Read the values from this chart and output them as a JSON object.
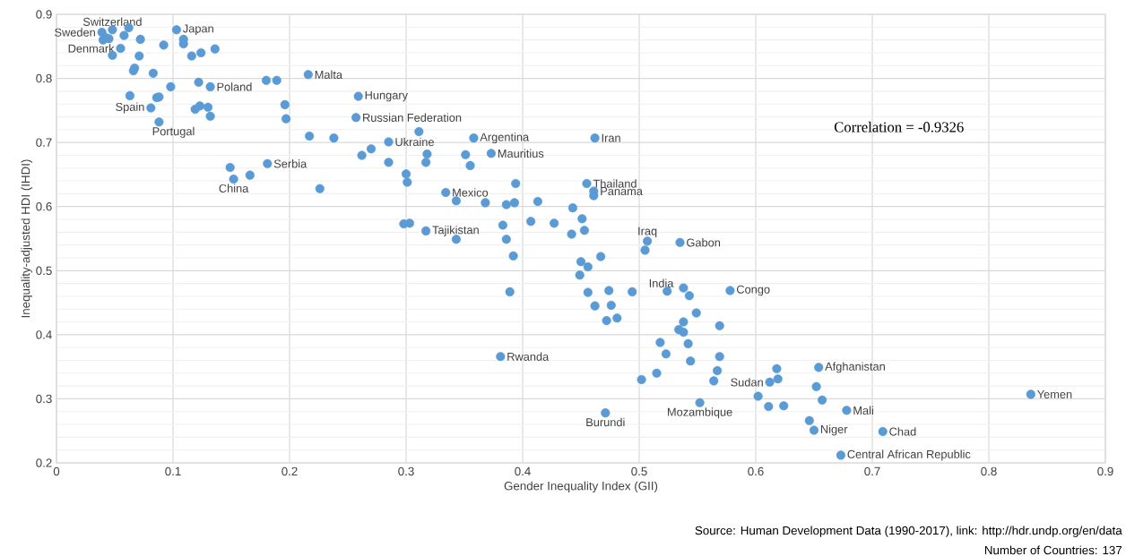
{
  "chart_data": {
    "type": "scatter",
    "xlabel": "Gender Inequality Index (GII)",
    "ylabel": "Inequality-adjusted HDI (IHDI)",
    "color": "#5b9bd5",
    "marker": "circle",
    "grid": true,
    "xlim": [
      0,
      0.9
    ],
    "ylim": [
      0.2,
      0.9
    ],
    "xticks": [
      0,
      0.1,
      0.2,
      0.3,
      0.4,
      0.5,
      0.6,
      0.7,
      0.8,
      0.9
    ],
    "yticks": [
      0.2,
      0.3,
      0.4,
      0.5,
      0.6,
      0.7,
      0.8,
      0.9
    ],
    "x": [
      0.039,
      0.048,
      0.062,
      0.058,
      0.042,
      0.045,
      0.04,
      0.072,
      0.103,
      0.109,
      0.109,
      0.092,
      0.055,
      0.048,
      0.071,
      0.116,
      0.124,
      0.136,
      0.067,
      0.066,
      0.083,
      0.216,
      0.18,
      0.189,
      0.122,
      0.132,
      0.098,
      0.063,
      0.086,
      0.088,
      0.259,
      0.081,
      0.119,
      0.123,
      0.13,
      0.132,
      0.196,
      0.197,
      0.257,
      0.088,
      0.217,
      0.238,
      0.285,
      0.27,
      0.262,
      0.285,
      0.149,
      0.152,
      0.166,
      0.181,
      0.226,
      0.3,
      0.301,
      0.298,
      0.303,
      0.311,
      0.358,
      0.462,
      0.318,
      0.317,
      0.351,
      0.355,
      0.373,
      0.394,
      0.455,
      0.461,
      0.461,
      0.334,
      0.343,
      0.368,
      0.386,
      0.393,
      0.413,
      0.443,
      0.407,
      0.427,
      0.451,
      0.383,
      0.442,
      0.453,
      0.317,
      0.343,
      0.386,
      0.507,
      0.535,
      0.505,
      0.392,
      0.467,
      0.45,
      0.456,
      0.449,
      0.389,
      0.456,
      0.474,
      0.494,
      0.524,
      0.538,
      0.543,
      0.578,
      0.462,
      0.476,
      0.549,
      0.472,
      0.481,
      0.538,
      0.569,
      0.534,
      0.538,
      0.518,
      0.542,
      0.381,
      0.523,
      0.569,
      0.544,
      0.567,
      0.515,
      0.502,
      0.564,
      0.552,
      0.471,
      0.618,
      0.654,
      0.612,
      0.619,
      0.652,
      0.602,
      0.657,
      0.611,
      0.624,
      0.836,
      0.678,
      0.646,
      0.65,
      0.709,
      0.673
    ],
    "values": [
      0.872,
      0.876,
      0.879,
      0.867,
      0.864,
      0.862,
      0.86,
      0.861,
      0.876,
      0.861,
      0.854,
      0.852,
      0.847,
      0.836,
      0.835,
      0.835,
      0.84,
      0.846,
      0.816,
      0.812,
      0.808,
      0.806,
      0.797,
      0.797,
      0.794,
      0.787,
      0.787,
      0.773,
      0.77,
      0.771,
      0.772,
      0.754,
      0.752,
      0.757,
      0.755,
      0.741,
      0.759,
      0.737,
      0.739,
      0.732,
      0.71,
      0.707,
      0.701,
      0.69,
      0.68,
      0.669,
      0.661,
      0.643,
      0.649,
      0.667,
      0.628,
      0.651,
      0.638,
      0.573,
      0.574,
      0.717,
      0.707,
      0.707,
      0.682,
      0.669,
      0.681,
      0.664,
      0.683,
      0.636,
      0.636,
      0.624,
      0.617,
      0.622,
      0.609,
      0.606,
      0.603,
      0.606,
      0.608,
      0.598,
      0.577,
      0.574,
      0.581,
      0.571,
      0.557,
      0.563,
      0.562,
      0.549,
      0.549,
      0.546,
      0.544,
      0.532,
      0.523,
      0.522,
      0.514,
      0.506,
      0.493,
      0.467,
      0.466,
      0.469,
      0.467,
      0.468,
      0.473,
      0.461,
      0.469,
      0.445,
      0.446,
      0.434,
      0.422,
      0.426,
      0.42,
      0.414,
      0.408,
      0.404,
      0.388,
      0.386,
      0.366,
      0.37,
      0.366,
      0.359,
      0.344,
      0.34,
      0.33,
      0.328,
      0.294,
      0.278,
      0.347,
      0.349,
      0.326,
      0.331,
      0.319,
      0.304,
      0.298,
      0.288,
      0.289,
      0.307,
      0.282,
      0.266,
      0.251,
      0.249,
      0.212
    ],
    "annotations": [
      {
        "text": "Switzerland",
        "x": 0.048,
        "y": 0.876
      },
      {
        "text": "Sweden",
        "x": 0.039,
        "y": 0.872
      },
      {
        "text": "Denmark",
        "x": 0.055,
        "y": 0.847
      },
      {
        "text": "Japan",
        "x": 0.103,
        "y": 0.876
      },
      {
        "text": "Malta",
        "x": 0.216,
        "y": 0.806
      },
      {
        "text": "Poland",
        "x": 0.132,
        "y": 0.787
      },
      {
        "text": "Hungary",
        "x": 0.259,
        "y": 0.772
      },
      {
        "text": "Spain",
        "x": 0.081,
        "y": 0.754
      },
      {
        "text": "Russian Federation",
        "x": 0.257,
        "y": 0.739
      },
      {
        "text": "Portugal",
        "x": 0.088,
        "y": 0.732
      },
      {
        "text": "Ukraine",
        "x": 0.285,
        "y": 0.701
      },
      {
        "text": "Argentina",
        "x": 0.358,
        "y": 0.707
      },
      {
        "text": "Iran",
        "x": 0.462,
        "y": 0.707
      },
      {
        "text": "Mauritius",
        "x": 0.373,
        "y": 0.683
      },
      {
        "text": "Serbia",
        "x": 0.181,
        "y": 0.667
      },
      {
        "text": "China",
        "x": 0.152,
        "y": 0.643
      },
      {
        "text": "Thailand",
        "x": 0.455,
        "y": 0.636
      },
      {
        "text": "Panama",
        "x": 0.461,
        "y": 0.624
      },
      {
        "text": "Mexico",
        "x": 0.334,
        "y": 0.622
      },
      {
        "text": "Tajikistan",
        "x": 0.317,
        "y": 0.562
      },
      {
        "text": "Iraq",
        "x": 0.507,
        "y": 0.546
      },
      {
        "text": "Gabon",
        "x": 0.535,
        "y": 0.544
      },
      {
        "text": "India",
        "x": 0.524,
        "y": 0.468
      },
      {
        "text": "Congo",
        "x": 0.578,
        "y": 0.469
      },
      {
        "text": "Rwanda",
        "x": 0.381,
        "y": 0.366
      },
      {
        "text": "Afghanistan",
        "x": 0.654,
        "y": 0.349
      },
      {
        "text": "Sudan",
        "x": 0.612,
        "y": 0.326
      },
      {
        "text": "Yemen",
        "x": 0.836,
        "y": 0.307
      },
      {
        "text": "Mozambique",
        "x": 0.552,
        "y": 0.294
      },
      {
        "text": "Mali",
        "x": 0.678,
        "y": 0.282
      },
      {
        "text": "Burundi",
        "x": 0.471,
        "y": 0.278
      },
      {
        "text": "Niger",
        "x": 0.65,
        "y": 0.251
      },
      {
        "text": "Chad",
        "x": 0.709,
        "y": 0.249
      },
      {
        "text": "Central African Republic",
        "x": 0.673,
        "y": 0.212
      },
      "Correlation = -0.9326",
      "Source: Human Development Data (1990-2017), link: http://hdr.undp.org/en/data",
      "Number of Countries: 137"
    ]
  }
}
